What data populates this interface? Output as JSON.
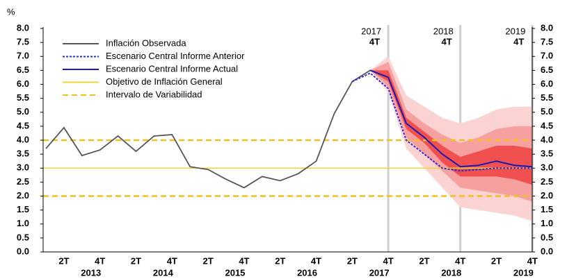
{
  "chart_data": {
    "type": "fan",
    "y_unit": "%",
    "categories": [
      null,
      "2T",
      null,
      "4T",
      null,
      "2T",
      null,
      "4T",
      null,
      "2T",
      null,
      "4T",
      null,
      "2T",
      null,
      "4T",
      null,
      "2T",
      null,
      "4T",
      null,
      "2T",
      null,
      "4T",
      null,
      "2T",
      null,
      "4T"
    ],
    "years": [
      "2013",
      "2014",
      "2015",
      "2016",
      "2017",
      "2018",
      "2019"
    ],
    "ylim": [
      0,
      8
    ],
    "yticks": [
      {
        "value": 0,
        "label": "0.0"
      },
      {
        "value": 0.5,
        "label": "0.5"
      },
      {
        "value": 1,
        "label": "1.0"
      },
      {
        "value": 1.5,
        "label": "1.5"
      },
      {
        "value": 2,
        "label": "2.0"
      },
      {
        "value": 2.5,
        "label": "2.5"
      },
      {
        "value": 3,
        "label": "3.0"
      },
      {
        "value": 3.5,
        "label": "3.5"
      },
      {
        "value": 4,
        "label": "4.0"
      },
      {
        "value": 4.5,
        "label": "4.5"
      },
      {
        "value": 5,
        "label": "5.0"
      },
      {
        "value": 5.5,
        "label": "5.5"
      },
      {
        "value": 6,
        "label": "6.0"
      },
      {
        "value": 6.5,
        "label": "6.5"
      },
      {
        "value": 7,
        "label": "7.0"
      },
      {
        "value": 7.5,
        "label": "7.5"
      },
      {
        "value": 8,
        "label": "8.0"
      }
    ],
    "series": [
      {
        "name": "Inflación Observada",
        "color": "#555555",
        "style": "solid",
        "values": [
          3.7,
          4.45,
          3.45,
          3.65,
          4.15,
          3.6,
          4.15,
          4.2,
          3.05,
          2.95,
          2.6,
          2.3,
          2.7,
          2.55,
          2.8,
          3.25,
          4.95,
          6.1,
          6.5,
          6.25,
          null,
          null,
          null,
          null,
          null,
          null,
          null,
          null
        ]
      },
      {
        "name": "Escenario Central Informe Anterior",
        "color": "#2b2bd6",
        "style": "dotted",
        "values": [
          null,
          null,
          null,
          null,
          null,
          null,
          null,
          null,
          null,
          null,
          null,
          null,
          null,
          null,
          null,
          null,
          null,
          6.1,
          6.4,
          5.85,
          4.0,
          3.5,
          3.0,
          2.9,
          2.95,
          3.0,
          3.0,
          3.0
        ]
      },
      {
        "name": "Escenario Central Informe Actual",
        "color": "#1a1ab0",
        "style": "solid",
        "values": [
          null,
          null,
          null,
          null,
          null,
          null,
          null,
          null,
          null,
          null,
          null,
          null,
          null,
          null,
          null,
          null,
          null,
          null,
          6.5,
          6.25,
          4.6,
          4.1,
          3.5,
          3.05,
          3.1,
          3.25,
          3.1,
          3.05
        ]
      }
    ],
    "reference_lines": [
      {
        "name": "Objetivo de Inflación General",
        "color": "#f2d43a",
        "style": "solid",
        "values": [
          3
        ]
      },
      {
        "name": "Intervalo de Variabilidad",
        "color": "#f0c020",
        "style": "dashed",
        "values": [
          2,
          4
        ]
      }
    ],
    "fan_start": 18,
    "fan_bands": [
      {
        "color": "#fbd3d3",
        "upper": [
          6.5,
          7.0,
          5.6,
          5.2,
          4.8,
          4.6,
          4.8,
          5.1,
          5.2,
          5.2
        ],
        "lower": [
          6.5,
          5.7,
          3.7,
          3.0,
          2.3,
          1.6,
          1.5,
          1.4,
          1.3,
          1.1
        ]
      },
      {
        "color": "#f6a0a0",
        "upper": [
          6.5,
          6.8,
          5.1,
          4.6,
          4.2,
          3.9,
          4.1,
          4.4,
          4.5,
          4.5
        ],
        "lower": [
          6.5,
          5.9,
          4.1,
          3.5,
          2.9,
          2.3,
          2.2,
          2.1,
          2.0,
          1.8
        ]
      },
      {
        "color": "#f05050",
        "upper": [
          6.5,
          6.5,
          4.8,
          4.3,
          3.8,
          3.4,
          3.6,
          3.8,
          3.8,
          3.7
        ],
        "lower": [
          6.5,
          6.1,
          4.4,
          3.9,
          3.2,
          2.7,
          2.7,
          2.7,
          2.6,
          2.4
        ]
      }
    ],
    "markers": [
      {
        "year": "2017",
        "label": "4T"
      },
      {
        "year": "2018",
        "label": "4T"
      },
      {
        "year": "2019",
        "label": "4T"
      }
    ]
  }
}
